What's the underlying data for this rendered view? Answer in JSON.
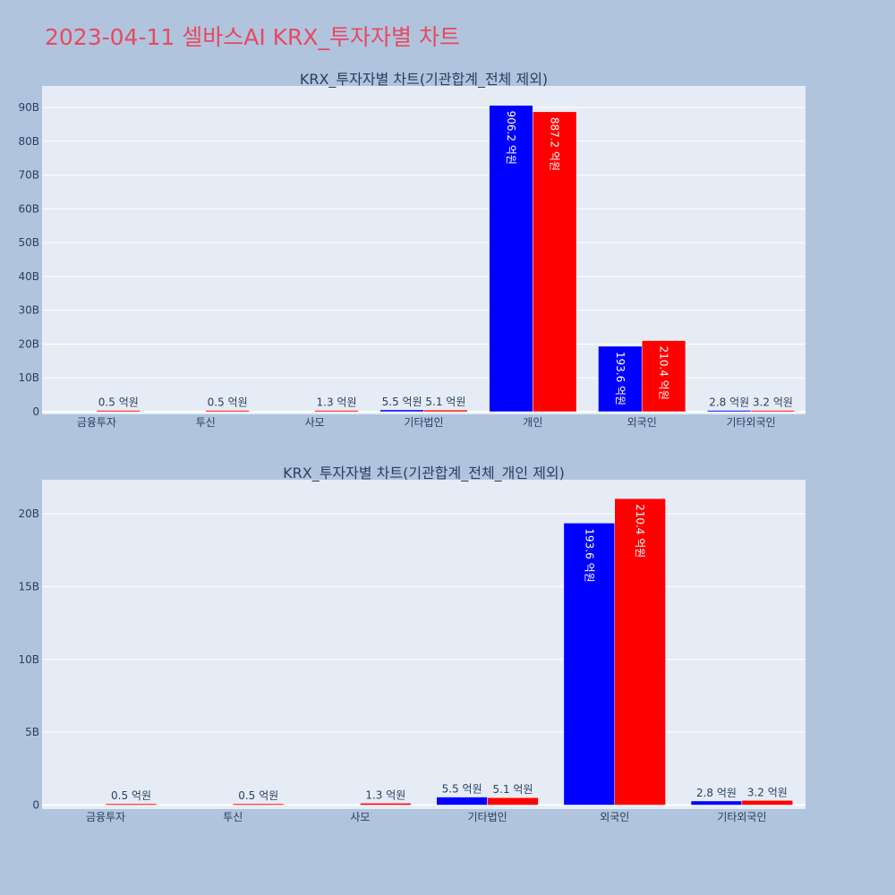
{
  "page": {
    "title": "2023-04-11 셀바스AI KRX_투자자별 차트"
  },
  "colors": {
    "background": "#b0c4de",
    "plot_bg": "#e5ecf6",
    "title": "#e8495f",
    "series_a": "#0000ff",
    "series_b": "#ff0000"
  },
  "chart_data": [
    {
      "type": "bar",
      "title": "KRX_투자자별 차트(기관합계_전체 제외)",
      "categories": [
        "금융투자",
        "투신",
        "사모",
        "기타법인",
        "개인",
        "외국인",
        "기타외국인"
      ],
      "y_ticks": [
        "0",
        "10B",
        "20B",
        "30B",
        "40B",
        "50B",
        "60B",
        "70B",
        "80B",
        "90B"
      ],
      "ylim": [
        0,
        95
      ],
      "series": [
        {
          "color": "#0000ff",
          "values": [
            0,
            0,
            0,
            0.55,
            90.62,
            19.36,
            0.28
          ],
          "labels": [
            "",
            "",
            "",
            "5.5 억원",
            "906.2 억원",
            "193.6 억원",
            "2.8 억원"
          ]
        },
        {
          "color": "#ff0000",
          "values": [
            0.05,
            0.05,
            0.13,
            0.51,
            88.72,
            21.04,
            0.32
          ],
          "labels": [
            "0.5 억원",
            "0.5 억원",
            "1.3 억원",
            "5.1 억원",
            "887.2 억원",
            "210.4 억원",
            "3.2 억원"
          ]
        }
      ]
    },
    {
      "type": "bar",
      "title": "KRX_투자자별 차트(기관합계_전체_개인 제외)",
      "categories": [
        "금융투자",
        "투신",
        "사모",
        "기타법인",
        "외국인",
        "기타외국인"
      ],
      "y_ticks": [
        "0",
        "5B",
        "10B",
        "15B",
        "20B"
      ],
      "ylim": [
        0,
        22
      ],
      "series": [
        {
          "color": "#0000ff",
          "values": [
            0,
            0,
            0,
            0.55,
            19.36,
            0.28
          ],
          "labels": [
            "",
            "",
            "",
            "5.5 억원",
            "193.6 억원",
            "2.8 억원"
          ]
        },
        {
          "color": "#ff0000",
          "values": [
            0.05,
            0.05,
            0.13,
            0.51,
            21.04,
            0.32
          ],
          "labels": [
            "0.5 억원",
            "0.5 억원",
            "1.3 억원",
            "5.1 억원",
            "210.4 억원",
            "3.2 억원"
          ]
        }
      ]
    }
  ]
}
